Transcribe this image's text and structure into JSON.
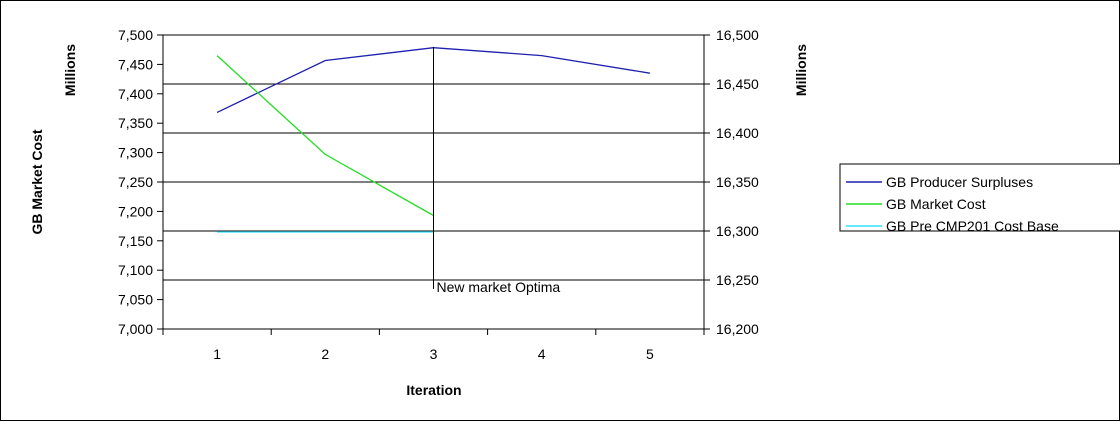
{
  "chart_data": {
    "type": "line",
    "xlabel": "Iteration",
    "categories": [
      "1",
      "2",
      "3",
      "4",
      "5"
    ],
    "y_left": {
      "label": "GB Market Cost",
      "units": "Millions",
      "ylim": [
        7000,
        7500
      ],
      "ticks": [
        "7,000",
        "7,050",
        "7,100",
        "7,150",
        "7,200",
        "7,250",
        "7,300",
        "7,350",
        "7,400",
        "7,450",
        "7,500"
      ]
    },
    "y_right": {
      "units": "Millions",
      "ylim": [
        16200,
        16500
      ],
      "ticks": [
        "16,200",
        "16,250",
        "16,300",
        "16,350",
        "16,400",
        "16,450",
        "16,500"
      ]
    },
    "series": [
      {
        "name": "GB Producer Surpluses",
        "axis": "right",
        "color": "#1f1fb0",
        "x": [
          1,
          2,
          3,
          4,
          5
        ],
        "values": [
          16421,
          16474,
          16487,
          16479,
          16461
        ]
      },
      {
        "name": "GB Market Cost",
        "axis": "left",
        "color": "#22dd22",
        "x": [
          1,
          2,
          3
        ],
        "values": [
          7465,
          7297,
          7193
        ]
      },
      {
        "name": "GB Pre CMP201 Cost Base",
        "axis": "left",
        "color": "#33e0ff",
        "x": [
          1,
          2,
          3
        ],
        "values": [
          7165,
          7165,
          7165
        ]
      }
    ],
    "annotations": [
      {
        "text": "New market Optima",
        "x": 3
      }
    ],
    "grid": true,
    "legend_position": "right"
  }
}
